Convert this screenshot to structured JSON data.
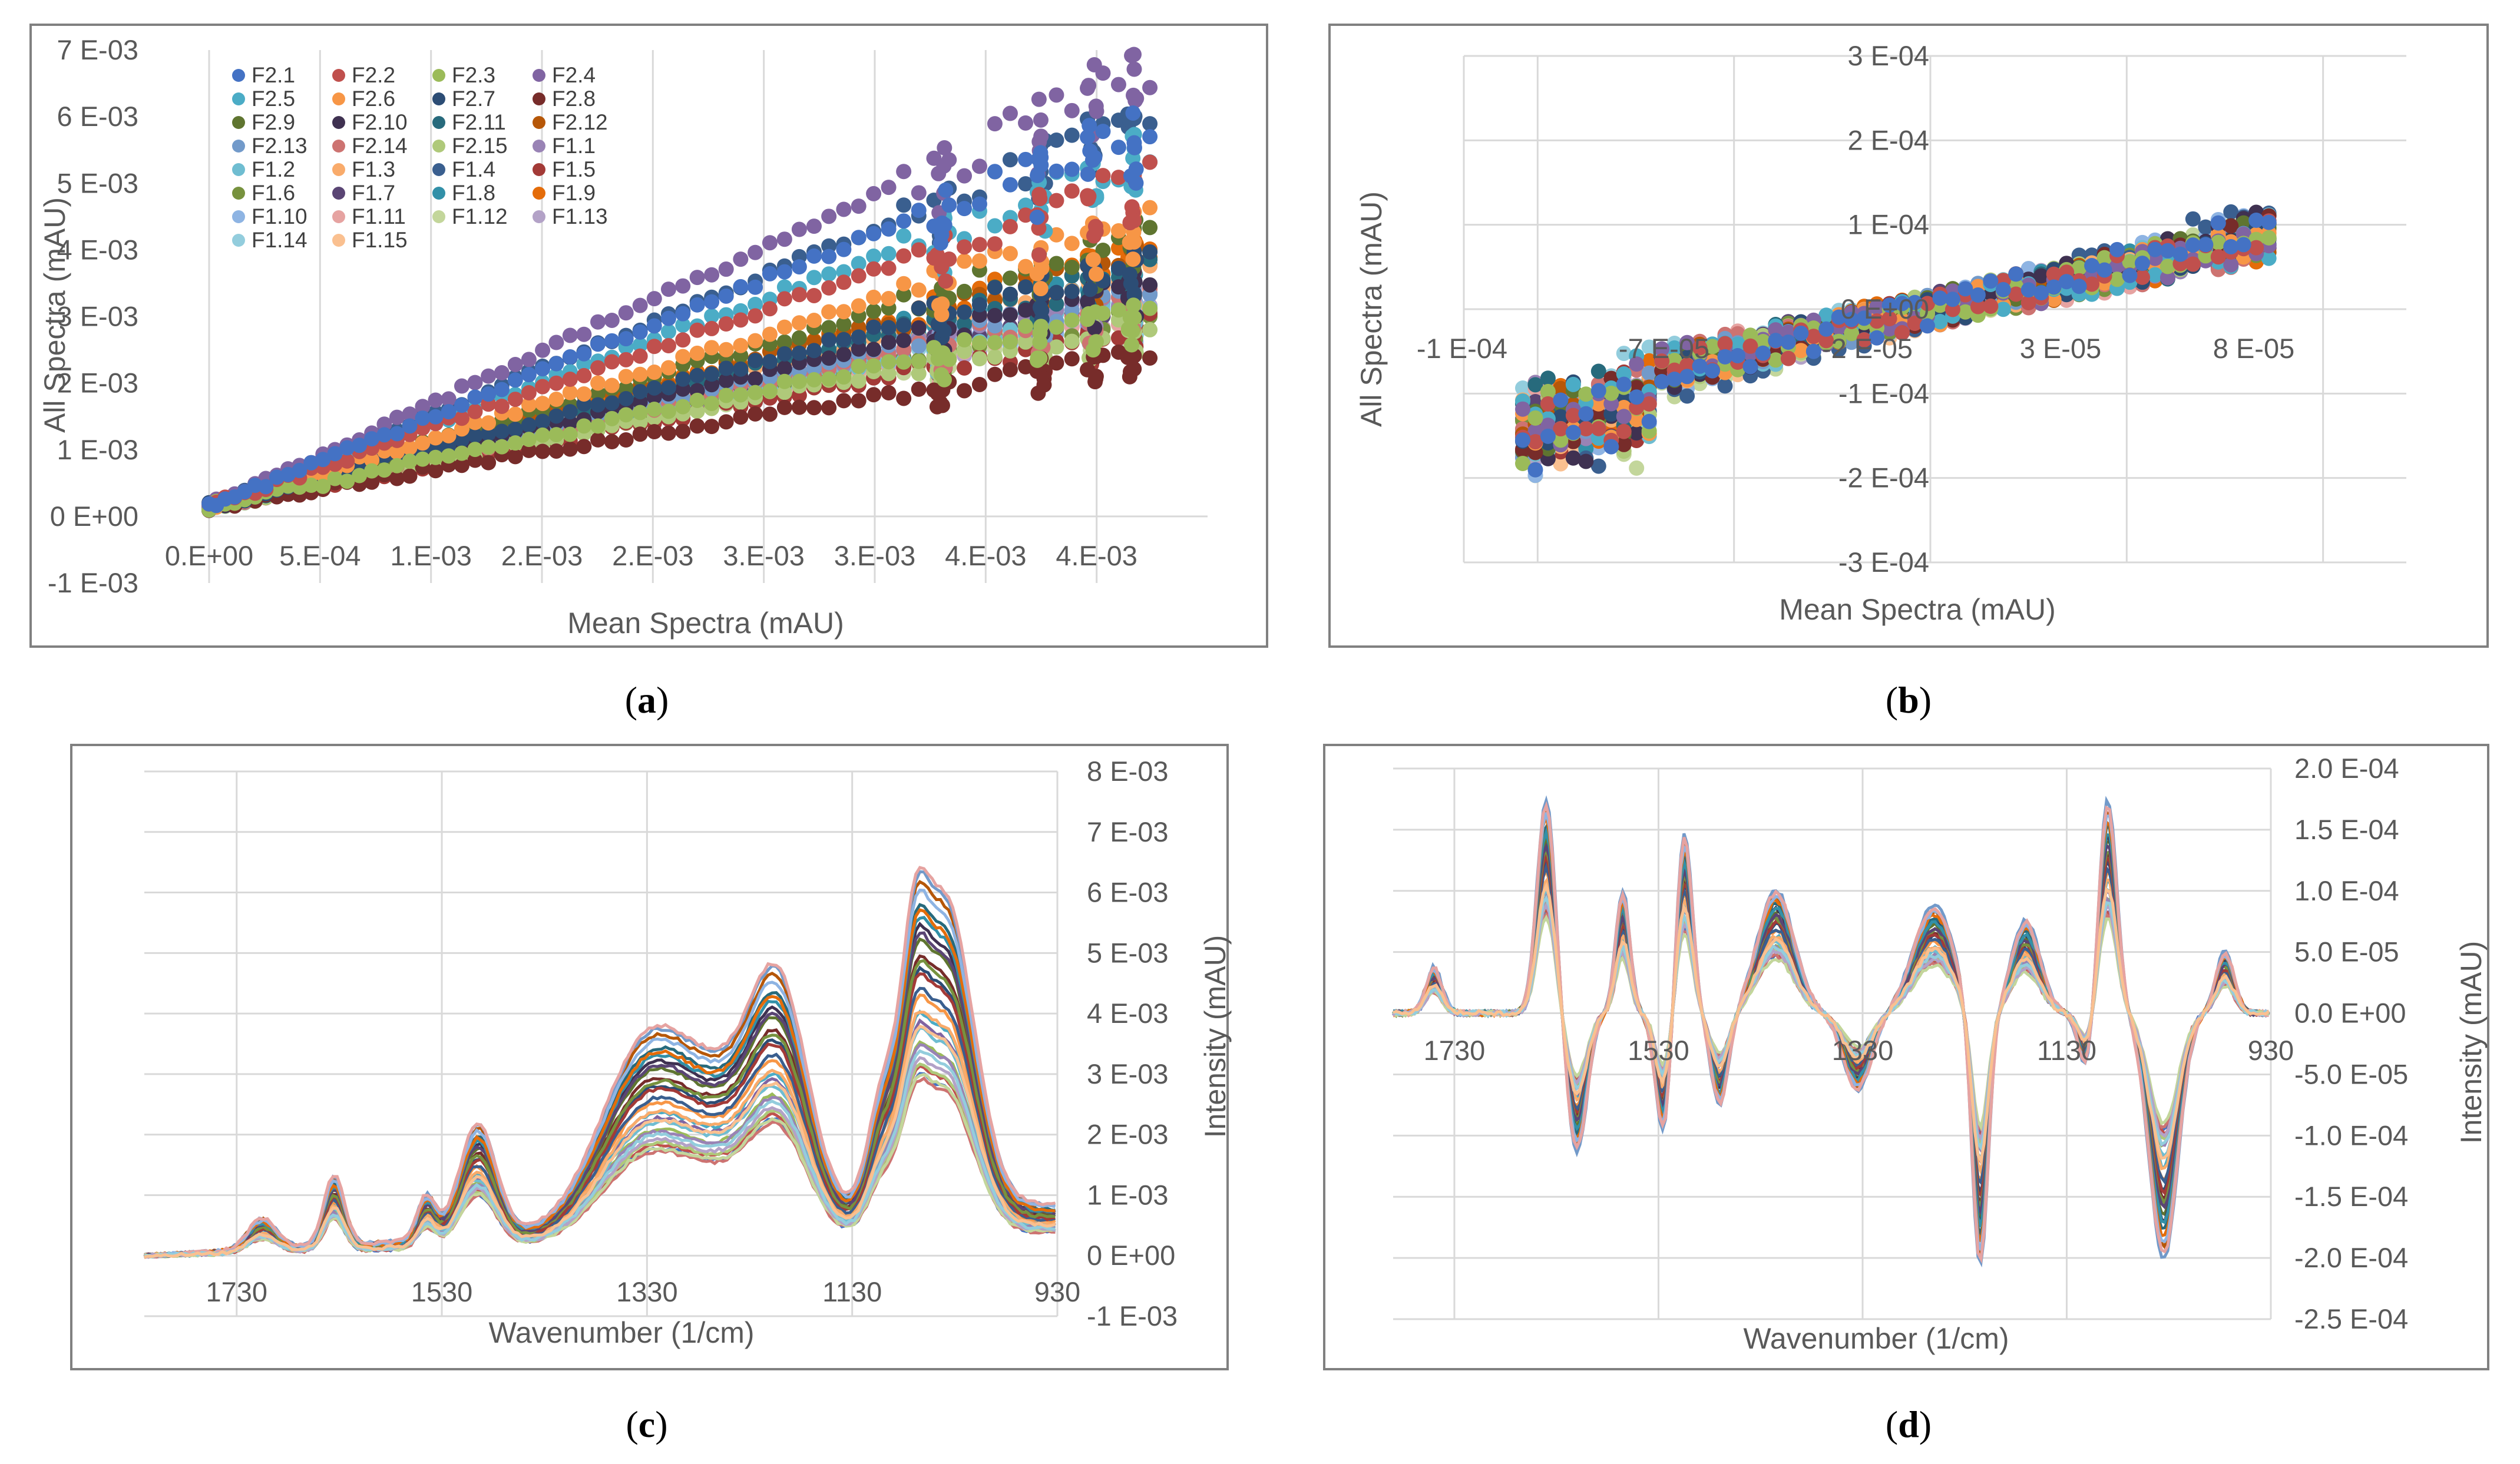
{
  "chart_data": [
    {
      "type": "scatter",
      "panel_label": "a",
      "xlabel": "Mean Spectra (mAU)",
      "ylabel": "All Spectra (mAU)",
      "xlim": [
        0,
        0.0045
      ],
      "ylim": [
        -0.001,
        0.007
      ],
      "x_ticks": [
        "0.E+00",
        "5.E-04",
        "1.E-03",
        "2.E-03",
        "2.E-03",
        "3.E-03",
        "3.E-03",
        "4.E-03",
        "4.E-03"
      ],
      "y_ticks": [
        "-1 E-03",
        "0 E+00",
        "1 E-03",
        "2 E-03",
        "3 E-03",
        "4 E-03",
        "5 E-03",
        "6 E-03",
        "7 E-03"
      ],
      "gridlines": "vertical",
      "legend_position": "top-left",
      "series": [
        {
          "name": "F2.1",
          "color": "#4472C4",
          "slope": 1.36
        },
        {
          "name": "F2.2",
          "color": "#C0504D",
          "slope": 1.18
        },
        {
          "name": "F2.3",
          "color": "#9BBB59",
          "slope": 0.7
        },
        {
          "name": "F2.4",
          "color": "#8064A2",
          "slope": 1.55
        },
        {
          "name": "F2.5",
          "color": "#4BACC6",
          "slope": 1.25
        },
        {
          "name": "F2.6",
          "color": "#F79646",
          "slope": 1.03
        },
        {
          "name": "F2.7",
          "color": "#2C4D75",
          "slope": 0.88
        },
        {
          "name": "F2.8",
          "color": "#772C2A",
          "slope": 0.55
        },
        {
          "name": "F2.9",
          "color": "#5F7530",
          "slope": 0.97
        },
        {
          "name": "F2.10",
          "color": "#3F3151",
          "slope": 0.8
        },
        {
          "name": "F2.11",
          "color": "#276A7C",
          "slope": 0.85
        },
        {
          "name": "F2.12",
          "color": "#B65708",
          "slope": 0.9
        },
        {
          "name": "F2.13",
          "color": "#729ACA",
          "slope": 0.78
        },
        {
          "name": "F2.14",
          "color": "#CD7371",
          "slope": 0.74
        },
        {
          "name": "F2.15",
          "color": "#AFC97A",
          "slope": 0.66
        },
        {
          "name": "F1.1",
          "color": "#9983B5",
          "slope": 0.76
        },
        {
          "name": "F1.2",
          "color": "#6FBDD1",
          "slope": 0.72
        },
        {
          "name": "F1.3",
          "color": "#F9AB6B",
          "slope": 0.83
        },
        {
          "name": "F1.4",
          "color": "#3A5F8F",
          "slope": 1.39
        },
        {
          "name": "F1.5",
          "color": "#A33A37",
          "slope": 0.64
        },
        {
          "name": "F1.6",
          "color": "#77923E",
          "slope": 0.7
        },
        {
          "name": "F1.7",
          "color": "#5A4574",
          "slope": 0.75
        },
        {
          "name": "F1.8",
          "color": "#3290A8",
          "slope": 0.84
        },
        {
          "name": "F1.9",
          "color": "#E46C0A",
          "slope": 0.91
        },
        {
          "name": "F1.10",
          "color": "#8EB4E3",
          "slope": 0.71
        },
        {
          "name": "F1.11",
          "color": "#E6A3A1",
          "slope": 0.68
        },
        {
          "name": "F1.12",
          "color": "#C3D69B",
          "slope": 0.67
        },
        {
          "name": "F1.13",
          "color": "#B3A2C7",
          "slope": 0.69
        },
        {
          "name": "F1.14",
          "color": "#93CDDD",
          "slope": 0.73
        },
        {
          "name": "F1.15",
          "color": "#FAC090",
          "slope": 0.7
        }
      ]
    },
    {
      "type": "scatter",
      "panel_label": "b",
      "xlabel": "Mean Spectra (mAU)",
      "ylabel": "All Spectra (mAU)",
      "xlim": [
        -0.00012,
        0.00012
      ],
      "ylim": [
        -0.0003,
        0.0003
      ],
      "x_ticks": [
        "-1 E-04",
        "-7 E-05",
        "-2 E-05",
        "3 E-05",
        "8 E-05"
      ],
      "y_ticks": [
        "-3 E-04",
        "-2 E-04",
        "-1 E-04",
        "0 E+00",
        "1 E-04",
        "2 E-04",
        "3 E-04"
      ],
      "x_range_data": [
        -0.000105,
        8.5e-05
      ],
      "gridlines": "both"
    },
    {
      "type": "line",
      "panel_label": "c",
      "xlabel": "Wavenumber (1/cm)",
      "ylabel": "Intensity (mAU)",
      "xlim": [
        1820,
        930
      ],
      "ylim": [
        -0.001,
        0.008
      ],
      "x_ticks": [
        "1730",
        "1530",
        "1330",
        "1130",
        "930"
      ],
      "y_ticks": [
        "-1 E-03",
        "0 E+00",
        "1 E-03",
        "2 E-03",
        "3 E-03",
        "4 E-03",
        "5 E-03",
        "6 E-03",
        "7 E-03",
        "8 E-03"
      ],
      "peaks_cm1": [
        1635,
        1545,
        1495,
        1330,
        1200,
        1080,
        1035
      ],
      "max_intensity": 0.0067,
      "gridlines": "both"
    },
    {
      "type": "line",
      "panel_label": "d",
      "xlabel": "Wavenumber (1/cm)",
      "ylabel": "Intensity (mAU)",
      "xlim": [
        1790,
        930
      ],
      "ylim": [
        -0.00025,
        0.0002
      ],
      "x_ticks": [
        "1730",
        "1530",
        "1330",
        "1130",
        "930"
      ],
      "y_ticks": [
        "-2.5 E-04",
        "-2.0 E-04",
        "-1.5 E-04",
        "-1.0 E-04",
        "-5.0 E-05",
        "0.0 E+00",
        "5.0 E-05",
        "1.0 E-04",
        "1.5 E-04",
        "2.0 E-04"
      ],
      "max_intensity": 0.000165,
      "min_intensity": -0.00021,
      "gridlines": "both"
    }
  ]
}
